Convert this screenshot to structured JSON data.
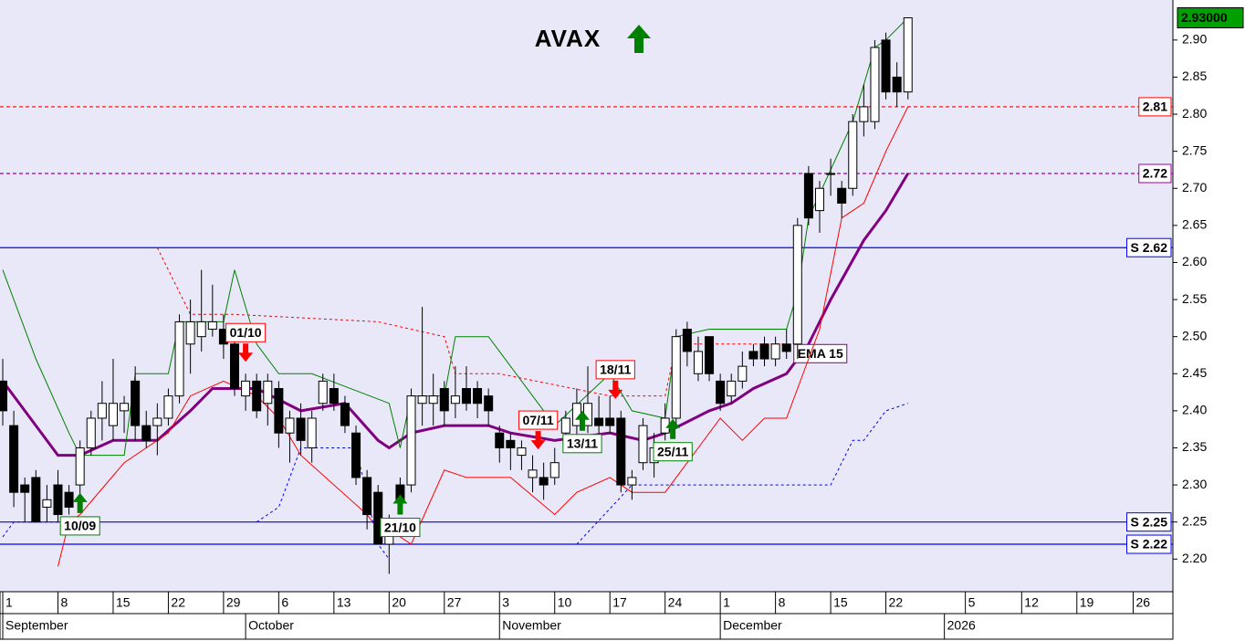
{
  "chart_data": {
    "type": "candlestick",
    "title": "AVAX",
    "title_color": "#008000",
    "xlim": [
      -0.25,
      106
    ],
    "ylim": [
      2.156,
      2.954
    ],
    "grid": true,
    "yticks": [
      {
        "value": 2.2,
        "label": "2.20"
      },
      2.25,
      {
        "value": 2.3,
        "label": "2.30"
      },
      2.35,
      {
        "value": 2.4,
        "label": "2.40"
      },
      2.45,
      {
        "value": 2.5,
        "label": "2.50"
      },
      2.55,
      {
        "value": 2.6,
        "label": "2.60"
      },
      2.65,
      {
        "value": 2.7,
        "label": "2.70"
      },
      2.75,
      {
        "value": 2.8,
        "label": "2.80"
      },
      2.85,
      {
        "value": 2.9,
        "label": "2.90"
      }
    ],
    "xticks": [
      {
        "value": 0,
        "label": "1"
      },
      {
        "value": 5,
        "label": "8"
      },
      {
        "value": 10,
        "label": "15"
      },
      {
        "value": 15,
        "label": "22"
      },
      {
        "value": 20,
        "label": "29"
      },
      {
        "value": 25,
        "label": "6"
      },
      {
        "value": 30,
        "label": "13"
      },
      {
        "value": 35,
        "label": "20"
      },
      {
        "value": 40,
        "label": "27"
      },
      {
        "value": 45,
        "label": "3"
      },
      {
        "value": 50,
        "label": "10"
      },
      {
        "value": 55,
        "label": "17"
      },
      {
        "value": 60,
        "label": "24"
      },
      {
        "value": 65,
        "label": "1"
      },
      {
        "value": 70,
        "label": "8"
      },
      {
        "value": 75,
        "label": "15"
      },
      {
        "value": 80,
        "label": "22"
      },
      {
        "value": 87.2,
        "label": "5"
      },
      {
        "value": 92.3,
        "label": "12"
      },
      {
        "value": 97.3,
        "label": "19"
      },
      {
        "value": 102.4,
        "label": "26"
      }
    ],
    "months": [
      {
        "value": 0,
        "label": "September"
      },
      {
        "value": 22,
        "label": "October"
      },
      {
        "value": 45,
        "label": "November"
      },
      {
        "value": 65,
        "label": "December"
      },
      {
        "value": 85.3,
        "label": "2026"
      }
    ],
    "candles": {
      "up_color": "#ffffff",
      "down_color": "#000000",
      "x": [
        0,
        1,
        2,
        3,
        4,
        5,
        6,
        7,
        8,
        9,
        10,
        11,
        12,
        13,
        14,
        15,
        16,
        17,
        18,
        19,
        20,
        21,
        22,
        23,
        24,
        25,
        26,
        27,
        28,
        29,
        30,
        31,
        32,
        33,
        34,
        35,
        36,
        37,
        38,
        39,
        40,
        41,
        42,
        43,
        44,
        45,
        46,
        47,
        48,
        49,
        50,
        51,
        52,
        53,
        54,
        55,
        56,
        57,
        58,
        59,
        60,
        61,
        62,
        63,
        64,
        65,
        66,
        67,
        68,
        69,
        70,
        71,
        72,
        73,
        74,
        75,
        76,
        77,
        78,
        79,
        80,
        81,
        82
      ],
      "open": [
        2.44,
        2.38,
        2.3,
        2.31,
        2.27,
        2.3,
        2.29,
        2.3,
        2.35,
        2.39,
        2.38,
        2.4,
        2.44,
        2.38,
        2.38,
        2.39,
        2.42,
        2.49,
        2.5,
        2.51,
        2.51,
        2.49,
        2.42,
        2.44,
        2.41,
        2.43,
        2.37,
        2.39,
        2.35,
        2.41,
        2.43,
        2.41,
        2.37,
        2.31,
        2.29,
        2.22,
        2.3,
        2.3,
        2.41,
        2.41,
        2.43,
        2.41,
        2.43,
        2.43,
        2.42,
        2.37,
        2.36,
        2.34,
        2.31,
        2.31,
        2.31,
        2.37,
        2.38,
        2.38,
        2.39,
        2.39,
        2.39,
        2.3,
        2.33,
        2.33,
        2.37,
        2.39,
        2.51,
        2.45,
        2.5,
        2.44,
        2.42,
        2.44,
        2.48,
        2.49,
        2.47,
        2.49,
        2.49,
        2.72,
        2.67,
        2.72,
        2.7,
        2.7,
        2.79,
        2.79,
        2.9,
        2.85,
        2.83
      ],
      "high": [
        2.47,
        2.4,
        2.31,
        2.32,
        2.3,
        2.32,
        2.3,
        2.36,
        2.4,
        2.44,
        2.47,
        2.42,
        2.46,
        2.4,
        2.41,
        2.43,
        2.53,
        2.55,
        2.59,
        2.57,
        2.53,
        2.5,
        2.45,
        2.45,
        2.45,
        2.44,
        2.4,
        2.41,
        2.4,
        2.45,
        2.45,
        2.42,
        2.38,
        2.32,
        2.3,
        2.26,
        2.31,
        2.43,
        2.54,
        2.45,
        2.44,
        2.46,
        2.46,
        2.44,
        2.43,
        2.38,
        2.37,
        2.36,
        2.34,
        2.33,
        2.35,
        2.4,
        2.43,
        2.46,
        2.42,
        2.42,
        2.4,
        2.32,
        2.39,
        2.37,
        2.41,
        2.51,
        2.52,
        2.5,
        2.5,
        2.45,
        2.45,
        2.48,
        2.49,
        2.5,
        2.5,
        2.51,
        2.66,
        2.73,
        2.71,
        2.74,
        2.71,
        2.8,
        2.84,
        2.9,
        2.91,
        2.87,
        2.93
      ],
      "low": [
        2.38,
        2.27,
        2.25,
        2.25,
        2.25,
        2.25,
        2.26,
        2.27,
        2.34,
        2.36,
        2.36,
        2.37,
        2.36,
        2.35,
        2.34,
        2.38,
        2.41,
        2.45,
        2.48,
        2.5,
        2.47,
        2.42,
        2.4,
        2.39,
        2.38,
        2.35,
        2.33,
        2.34,
        2.33,
        2.4,
        2.4,
        2.37,
        2.3,
        2.24,
        2.22,
        2.18,
        2.26,
        2.29,
        2.38,
        2.38,
        2.38,
        2.39,
        2.4,
        2.39,
        2.38,
        2.33,
        2.32,
        2.32,
        2.29,
        2.28,
        2.3,
        2.35,
        2.36,
        2.37,
        2.36,
        2.37,
        2.29,
        2.28,
        2.32,
        2.31,
        2.36,
        2.38,
        2.46,
        2.44,
        2.44,
        2.4,
        2.41,
        2.43,
        2.46,
        2.46,
        2.46,
        2.47,
        2.47,
        2.65,
        2.64,
        2.69,
        2.66,
        2.69,
        2.77,
        2.78,
        2.82,
        2.81,
        2.82
      ],
      "close": [
        2.4,
        2.29,
        2.29,
        2.25,
        2.28,
        2.26,
        2.27,
        2.35,
        2.39,
        2.41,
        2.41,
        2.41,
        2.38,
        2.36,
        2.39,
        2.42,
        2.52,
        2.52,
        2.52,
        2.52,
        2.49,
        2.43,
        2.44,
        2.4,
        2.44,
        2.37,
        2.39,
        2.36,
        2.39,
        2.44,
        2.41,
        2.38,
        2.31,
        2.26,
        2.22,
        2.25,
        2.28,
        2.42,
        2.42,
        2.42,
        2.4,
        2.42,
        2.41,
        2.41,
        2.4,
        2.35,
        2.35,
        2.35,
        2.32,
        2.3,
        2.33,
        2.39,
        2.41,
        2.41,
        2.38,
        2.38,
        2.3,
        2.31,
        2.38,
        2.35,
        2.39,
        2.5,
        2.48,
        2.48,
        2.45,
        2.41,
        2.44,
        2.46,
        2.47,
        2.47,
        2.49,
        2.48,
        2.65,
        2.66,
        2.7,
        2.72,
        2.68,
        2.79,
        2.81,
        2.89,
        2.83,
        2.83,
        2.93
      ]
    },
    "series": [
      {
        "name": "EMA 15",
        "color": "#800080",
        "width": 3,
        "dashed": false,
        "x": [
          0,
          5,
          7,
          10,
          14,
          17,
          19,
          23,
          27,
          31,
          34,
          35,
          37,
          40,
          44,
          46,
          50,
          55,
          58,
          60,
          64,
          66,
          68,
          71,
          73,
          75,
          78,
          80,
          82
        ],
        "values": [
          2.44,
          2.34,
          2.34,
          2.36,
          2.36,
          2.4,
          2.43,
          2.43,
          2.4,
          2.41,
          2.36,
          2.35,
          2.37,
          2.38,
          2.38,
          2.37,
          2.36,
          2.37,
          2.36,
          2.37,
          2.4,
          2.41,
          2.43,
          2.45,
          2.49,
          2.55,
          2.63,
          2.67,
          2.72
        ]
      },
      {
        "color": "#008000",
        "width": 1,
        "dashed": false,
        "x": [
          0,
          3,
          6,
          7,
          11,
          12,
          15,
          16,
          20,
          21,
          23,
          25,
          28,
          35,
          36,
          37,
          40,
          41,
          44,
          48,
          50,
          55,
          57,
          60,
          61,
          64,
          66,
          71,
          72,
          73,
          77,
          79,
          80,
          82
        ],
        "values": [
          2.59,
          2.47,
          2.37,
          2.34,
          2.34,
          2.45,
          2.45,
          2.52,
          2.52,
          2.59,
          2.49,
          2.45,
          2.45,
          2.41,
          2.35,
          2.42,
          2.42,
          2.5,
          2.5,
          2.42,
          2.38,
          2.45,
          2.4,
          2.39,
          2.5,
          2.51,
          2.51,
          2.51,
          2.56,
          2.66,
          2.79,
          2.89,
          2.9,
          2.93
        ]
      },
      {
        "color": "#ff0000",
        "width": 1,
        "dashed": false,
        "x": [
          5,
          6,
          7,
          11,
          15,
          17,
          20,
          23,
          25,
          27,
          33,
          34,
          35,
          37,
          40,
          42,
          46,
          50,
          52,
          55,
          57,
          60,
          63,
          65,
          67,
          69,
          71,
          73,
          74,
          76,
          78,
          80,
          82
        ],
        "values": [
          2.19,
          2.25,
          2.26,
          2.33,
          2.37,
          2.42,
          2.44,
          2.42,
          2.39,
          2.34,
          2.26,
          2.24,
          2.24,
          2.22,
          2.32,
          2.31,
          2.31,
          2.26,
          2.29,
          2.31,
          2.29,
          2.29,
          2.35,
          2.39,
          2.36,
          2.39,
          2.39,
          2.47,
          2.51,
          2.66,
          2.68,
          2.75,
          2.81
        ]
      },
      {
        "color": "#ff0000",
        "width": 1,
        "dashed": true,
        "x": [
          14,
          17,
          21,
          34,
          40,
          41,
          45,
          55,
          60,
          61,
          71
        ],
        "values": [
          2.62,
          2.53,
          2.53,
          2.52,
          2.5,
          2.45,
          2.45,
          2.42,
          2.42,
          2.49,
          2.49
        ]
      },
      {
        "color": "#0000ff",
        "width": 1,
        "dashed": true,
        "x": [
          0,
          1,
          2,
          3,
          4,
          5,
          6,
          null,
          23,
          25,
          27,
          32,
          34,
          35,
          null,
          52,
          57,
          75,
          77,
          78,
          80,
          82
        ],
        "values": [
          2.23,
          2.25,
          2.25,
          2.25,
          2.25,
          2.25,
          2.25,
          null,
          2.25,
          2.27,
          2.35,
          2.35,
          2.22,
          2.2,
          null,
          2.22,
          2.3,
          2.3,
          2.36,
          2.36,
          2.4,
          2.41
        ]
      }
    ],
    "levels": [
      {
        "value": 2.81,
        "label": "2.81",
        "color": "#ff0000",
        "dashed": true
      },
      {
        "value": 2.72,
        "label": "2.72",
        "color": "#a000a0",
        "dashed": true
      },
      {
        "value": 2.62,
        "label": "S 2.62",
        "color": "#0000ff",
        "dashed": false
      },
      {
        "value": 2.25,
        "label": "S 2.25",
        "color": "#0000ff",
        "dashed": false
      },
      {
        "value": 2.22,
        "label": "S 2.22",
        "color": "#0000ff",
        "dashed": false
      }
    ],
    "last_price": {
      "value": 2.93,
      "label": "2.93000",
      "color": "#00a000"
    },
    "annotations": [
      {
        "text": "10/09",
        "x": 7,
        "y": 2.262,
        "direction": "up"
      },
      {
        "text": "01/10",
        "x": 22,
        "y": 2.466,
        "direction": "down"
      },
      {
        "text": "21/10",
        "x": 36,
        "y": 2.26,
        "direction": "up"
      },
      {
        "text": "07/11",
        "x": 48.5,
        "y": 2.348,
        "direction": "down"
      },
      {
        "text": "13/11",
        "x": 52.5,
        "y": 2.373,
        "direction": "up"
      },
      {
        "text": "18/11",
        "x": 55.5,
        "y": 2.416,
        "direction": "down"
      },
      {
        "text": "25/11",
        "x": 60.7,
        "y": 2.362,
        "direction": "up"
      }
    ],
    "up_color": "#008000",
    "down_color": "#ff0000"
  }
}
